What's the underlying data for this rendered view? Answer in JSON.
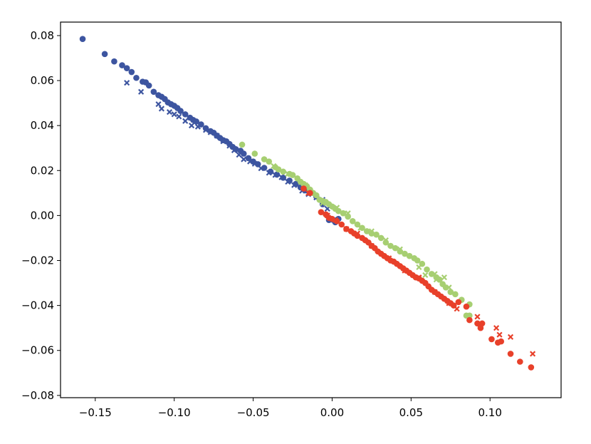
{
  "chart_data": {
    "type": "scatter",
    "title": "",
    "xlabel": "",
    "ylabel": "",
    "xlim": [
      -0.172,
      0.145
    ],
    "ylim": [
      -0.081,
      0.086
    ],
    "grid": false,
    "legend": "none",
    "x_ticks": [
      -0.15,
      -0.1,
      -0.05,
      0.0,
      0.05,
      0.1
    ],
    "x_tick_labels": [
      "−0.15",
      "−0.10",
      "−0.05",
      "0.00",
      "0.05",
      "0.10"
    ],
    "y_ticks": [
      -0.08,
      -0.06,
      -0.04,
      -0.02,
      0.0,
      0.02,
      0.04,
      0.06,
      0.08
    ],
    "y_tick_labels": [
      "−0.08",
      "−0.06",
      "−0.04",
      "−0.02",
      "0.00",
      "0.02",
      "0.04",
      "0.06",
      "0.08"
    ],
    "series": [
      {
        "color": "#3d55a0",
        "marker": "circle",
        "points": [
          [
            -0.158,
            0.0785
          ],
          [
            -0.144,
            0.0718
          ],
          [
            -0.138,
            0.0685
          ],
          [
            -0.133,
            0.0668
          ],
          [
            -0.13,
            0.0655
          ],
          [
            -0.127,
            0.0638
          ],
          [
            -0.124,
            0.0612
          ],
          [
            -0.12,
            0.0595
          ],
          [
            -0.118,
            0.0592
          ],
          [
            -0.116,
            0.0578
          ],
          [
            -0.113,
            0.055
          ],
          [
            -0.11,
            0.0535
          ],
          [
            -0.108,
            0.0528
          ],
          [
            -0.106,
            0.0518
          ],
          [
            -0.104,
            0.0503
          ],
          [
            -0.102,
            0.0495
          ],
          [
            -0.1,
            0.0488
          ],
          [
            -0.098,
            0.0478
          ],
          [
            -0.096,
            0.0465
          ],
          [
            -0.093,
            0.045
          ],
          [
            -0.09,
            0.0435
          ],
          [
            -0.088,
            0.0425
          ],
          [
            -0.086,
            0.0418
          ],
          [
            -0.083,
            0.0405
          ],
          [
            -0.08,
            0.0388
          ],
          [
            -0.077,
            0.0375
          ],
          [
            -0.075,
            0.0368
          ],
          [
            -0.073,
            0.0355
          ],
          [
            -0.071,
            0.0345
          ],
          [
            -0.069,
            0.0335
          ],
          [
            -0.067,
            0.033
          ],
          [
            -0.065,
            0.0318
          ],
          [
            -0.063,
            0.0305
          ],
          [
            -0.061,
            0.0295
          ],
          [
            -0.058,
            0.0288
          ],
          [
            -0.056,
            0.0275
          ],
          [
            -0.053,
            0.0255
          ],
          [
            -0.05,
            0.024
          ],
          [
            -0.047,
            0.0228
          ],
          [
            -0.043,
            0.0212
          ],
          [
            -0.039,
            0.0195
          ],
          [
            -0.035,
            0.0182
          ],
          [
            -0.031,
            0.0168
          ],
          [
            -0.027,
            0.0155
          ],
          [
            -0.023,
            0.014
          ],
          [
            -0.02,
            0.0125
          ],
          [
            -0.017,
            0.0112
          ],
          [
            -0.014,
            0.01
          ],
          [
            -0.01,
            0.0085
          ],
          [
            -0.006,
            0.005
          ],
          [
            -0.002,
            -0.002
          ],
          [
            0.002,
            -0.003
          ],
          [
            0.004,
            -0.0015
          ]
        ]
      },
      {
        "color": "#3d55a0",
        "marker": "x",
        "points": [
          [
            -0.13,
            0.059
          ],
          [
            -0.121,
            0.055
          ],
          [
            -0.11,
            0.0495
          ],
          [
            -0.108,
            0.0475
          ],
          [
            -0.103,
            0.046
          ],
          [
            -0.1,
            0.045
          ],
          [
            -0.097,
            0.044
          ],
          [
            -0.093,
            0.042
          ],
          [
            -0.089,
            0.04
          ],
          [
            -0.085,
            0.0395
          ],
          [
            -0.08,
            0.038
          ],
          [
            -0.077,
            0.037
          ],
          [
            -0.073,
            0.0355
          ],
          [
            -0.069,
            0.033
          ],
          [
            -0.065,
            0.031
          ],
          [
            -0.062,
            0.029
          ],
          [
            -0.059,
            0.027
          ],
          [
            -0.056,
            0.025
          ],
          [
            -0.052,
            0.024
          ],
          [
            -0.049,
            0.023
          ],
          [
            -0.045,
            0.021
          ],
          [
            -0.04,
            0.019
          ],
          [
            -0.036,
            0.018
          ],
          [
            -0.032,
            0.017
          ],
          [
            -0.028,
            0.015
          ],
          [
            -0.024,
            0.0135
          ],
          [
            -0.019,
            0.011
          ],
          [
            -0.015,
            0.0095
          ],
          [
            -0.01,
            0.008
          ],
          [
            -0.006,
            0.007
          ],
          [
            -0.003,
            0.003
          ],
          [
            0.001,
            -0.002
          ]
        ]
      },
      {
        "color": "#a7cf72",
        "marker": "circle",
        "points": [
          [
            -0.057,
            0.0315
          ],
          [
            -0.049,
            0.0275
          ],
          [
            -0.043,
            0.025
          ],
          [
            -0.04,
            0.024
          ],
          [
            -0.036,
            0.0215
          ],
          [
            -0.034,
            0.0205
          ],
          [
            -0.031,
            0.0195
          ],
          [
            -0.027,
            0.0185
          ],
          [
            -0.025,
            0.018
          ],
          [
            -0.022,
            0.0165
          ],
          [
            -0.02,
            0.015
          ],
          [
            -0.018,
            0.014
          ],
          [
            -0.016,
            0.013
          ],
          [
            -0.014,
            0.0115
          ],
          [
            -0.012,
            0.01
          ],
          [
            -0.01,
            0.009
          ],
          [
            -0.008,
            0.007
          ],
          [
            -0.006,
            0.0065
          ],
          [
            -0.004,
            0.006
          ],
          [
            -0.002,
            0.005
          ],
          [
            0.0,
            0.004
          ],
          [
            0.002,
            0.003
          ],
          [
            0.004,
            0.002
          ],
          [
            0.007,
            0.001
          ],
          [
            0.01,
            -0.0005
          ],
          [
            0.013,
            -0.0025
          ],
          [
            0.016,
            -0.004
          ],
          [
            0.019,
            -0.0055
          ],
          [
            0.022,
            -0.007
          ],
          [
            0.025,
            -0.008
          ],
          [
            0.028,
            -0.0085
          ],
          [
            0.031,
            -0.01
          ],
          [
            0.034,
            -0.012
          ],
          [
            0.037,
            -0.0135
          ],
          [
            0.04,
            -0.0145
          ],
          [
            0.043,
            -0.016
          ],
          [
            0.046,
            -0.017
          ],
          [
            0.049,
            -0.018
          ],
          [
            0.052,
            -0.019
          ],
          [
            0.054,
            -0.02
          ],
          [
            0.057,
            -0.0215
          ],
          [
            0.06,
            -0.024
          ],
          [
            0.063,
            -0.026
          ],
          [
            0.066,
            -0.0275
          ],
          [
            0.068,
            -0.0285
          ],
          [
            0.07,
            -0.0305
          ],
          [
            0.072,
            -0.032
          ],
          [
            0.075,
            -0.034
          ],
          [
            0.078,
            -0.035
          ],
          [
            0.082,
            -0.0375
          ],
          [
            0.087,
            -0.0395
          ],
          [
            0.085,
            -0.0445
          ],
          [
            0.087,
            -0.0445
          ]
        ]
      },
      {
        "color": "#a7cf72",
        "marker": "x",
        "points": [
          [
            -0.037,
            0.022
          ],
          [
            -0.028,
            0.0185
          ],
          [
            -0.017,
            0.0135
          ],
          [
            -0.006,
            0.0055
          ],
          [
            0.003,
            0.0035
          ],
          [
            0.01,
            0.001
          ],
          [
            0.018,
            -0.0055
          ],
          [
            0.025,
            -0.007
          ],
          [
            0.034,
            -0.011
          ],
          [
            0.043,
            -0.015
          ],
          [
            0.055,
            -0.023
          ],
          [
            0.059,
            -0.0265
          ],
          [
            0.065,
            -0.026
          ],
          [
            0.066,
            -0.0285
          ],
          [
            0.071,
            -0.0275
          ],
          [
            0.074,
            -0.032
          ]
        ]
      },
      {
        "color": "#e8402a",
        "marker": "circle",
        "points": [
          [
            -0.018,
            0.012
          ],
          [
            -0.014,
            0.01
          ],
          [
            -0.007,
            0.0015
          ],
          [
            -0.004,
            0.0005
          ],
          [
            -0.002,
            -0.001
          ],
          [
            0.0,
            -0.0015
          ],
          [
            0.003,
            -0.0025
          ],
          [
            0.006,
            -0.004
          ],
          [
            0.009,
            -0.006
          ],
          [
            0.012,
            -0.007
          ],
          [
            0.014,
            -0.008
          ],
          [
            0.016,
            -0.009
          ],
          [
            0.019,
            -0.01
          ],
          [
            0.021,
            -0.011
          ],
          [
            0.023,
            -0.012
          ],
          [
            0.025,
            -0.0135
          ],
          [
            0.027,
            -0.0145
          ],
          [
            0.029,
            -0.016
          ],
          [
            0.031,
            -0.017
          ],
          [
            0.033,
            -0.018
          ],
          [
            0.035,
            -0.019
          ],
          [
            0.037,
            -0.02
          ],
          [
            0.039,
            -0.0205
          ],
          [
            0.041,
            -0.0215
          ],
          [
            0.043,
            -0.0225
          ],
          [
            0.045,
            -0.0235
          ],
          [
            0.047,
            -0.0245
          ],
          [
            0.049,
            -0.0255
          ],
          [
            0.051,
            -0.0265
          ],
          [
            0.053,
            -0.0275
          ],
          [
            0.055,
            -0.028
          ],
          [
            0.057,
            -0.029
          ],
          [
            0.059,
            -0.03
          ],
          [
            0.061,
            -0.0315
          ],
          [
            0.063,
            -0.033
          ],
          [
            0.065,
            -0.034
          ],
          [
            0.067,
            -0.035
          ],
          [
            0.069,
            -0.036
          ],
          [
            0.071,
            -0.037
          ],
          [
            0.073,
            -0.038
          ],
          [
            0.075,
            -0.039
          ],
          [
            0.077,
            -0.04
          ],
          [
            0.08,
            -0.0385
          ],
          [
            0.085,
            -0.0405
          ],
          [
            0.087,
            -0.0465
          ],
          [
            0.092,
            -0.048
          ],
          [
            0.094,
            -0.05
          ],
          [
            0.095,
            -0.048
          ],
          [
            0.101,
            -0.055
          ],
          [
            0.105,
            -0.0565
          ],
          [
            0.107,
            -0.056
          ],
          [
            0.113,
            -0.0615
          ],
          [
            0.119,
            -0.065
          ],
          [
            0.126,
            -0.0675
          ]
        ]
      },
      {
        "color": "#e8402a",
        "marker": "x",
        "points": [
          [
            -0.015,
            0.01
          ],
          [
            -0.003,
            0.0
          ],
          [
            0.002,
            -0.002
          ],
          [
            0.009,
            -0.006
          ],
          [
            0.016,
            -0.008
          ],
          [
            0.025,
            -0.0135
          ],
          [
            0.036,
            -0.019
          ],
          [
            0.046,
            -0.0245
          ],
          [
            0.055,
            -0.0275
          ],
          [
            0.065,
            -0.034
          ],
          [
            0.074,
            -0.039
          ],
          [
            0.079,
            -0.0415
          ],
          [
            0.092,
            -0.045
          ],
          [
            0.094,
            -0.048
          ],
          [
            0.104,
            -0.05
          ],
          [
            0.106,
            -0.053
          ],
          [
            0.113,
            -0.054
          ],
          [
            0.127,
            -0.0615
          ]
        ]
      }
    ]
  }
}
